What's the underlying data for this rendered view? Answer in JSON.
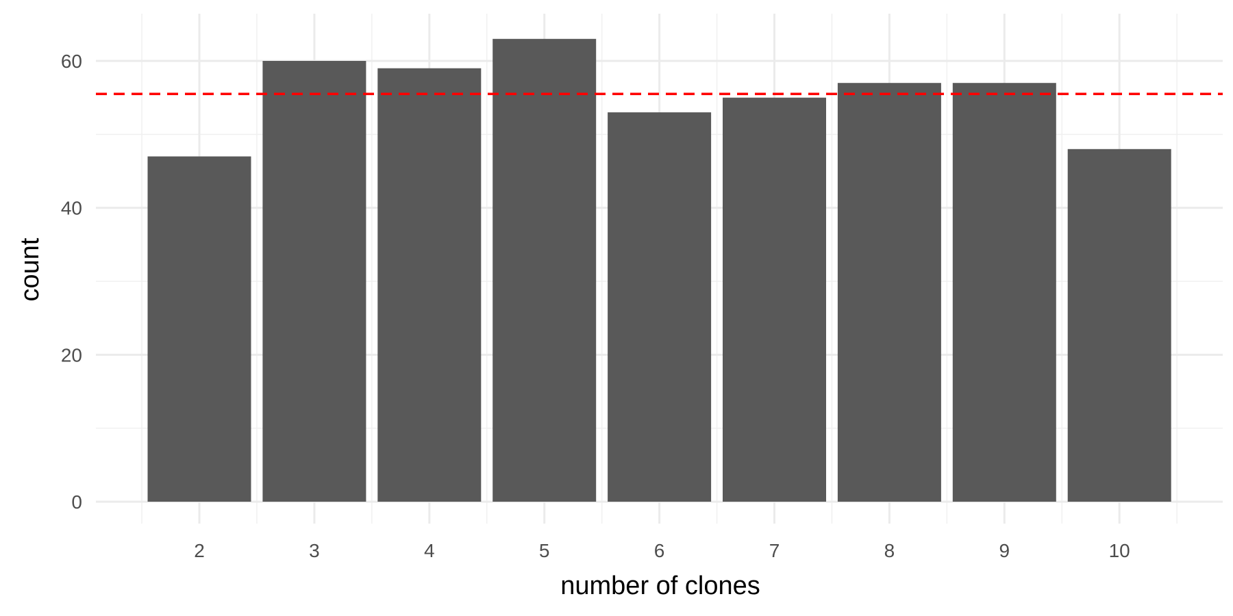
{
  "chart_data": {
    "type": "bar",
    "title": "",
    "xlabel": "number of clones",
    "ylabel": "count",
    "categories": [
      "2",
      "3",
      "4",
      "5",
      "6",
      "7",
      "8",
      "9",
      "10"
    ],
    "values": [
      47,
      60,
      59,
      63,
      53,
      55,
      57,
      57,
      48
    ],
    "ylim": [
      0,
      66
    ],
    "y_ticks": [
      0,
      20,
      40,
      60
    ],
    "reference_line": {
      "value": 55.5,
      "style": "dashed",
      "color": "#ff0000"
    },
    "bar_color": "#595959",
    "grid": true,
    "legend": "none"
  }
}
